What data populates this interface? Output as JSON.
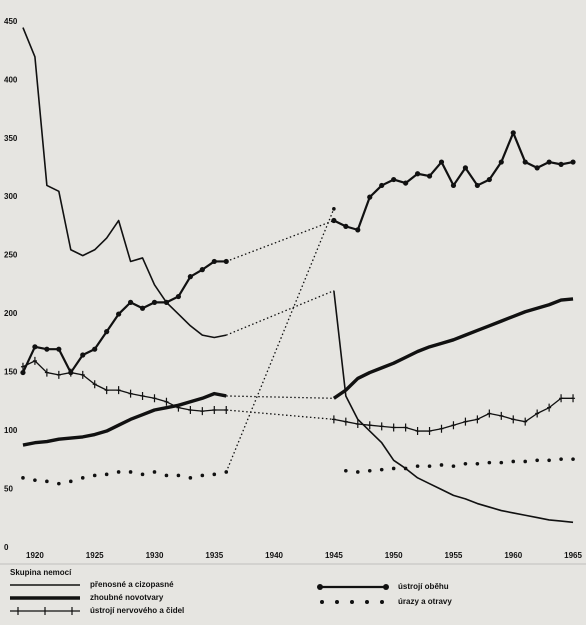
{
  "chart_data": {
    "type": "line",
    "x": [
      1919,
      1920,
      1921,
      1922,
      1923,
      1924,
      1925,
      1926,
      1927,
      1928,
      1929,
      1930,
      1931,
      1932,
      1933,
      1934,
      1935,
      1936,
      1937,
      1938,
      1939,
      1940,
      1941,
      1942,
      1943,
      1944,
      1945,
      1946,
      1947,
      1948,
      1949,
      1950,
      1951,
      1952,
      1953,
      1954,
      1955,
      1956,
      1957,
      1958,
      1959,
      1960,
      1961,
      1962,
      1963,
      1964,
      1965
    ],
    "legend_title": "Skupina nemocí",
    "series": [
      {
        "name": "přenosné a cizopasné",
        "style": "thin",
        "color": "#111111",
        "values": [
          445,
          420,
          310,
          305,
          255,
          250,
          255,
          265,
          280,
          245,
          248,
          225,
          210,
          200,
          190,
          182,
          180,
          182,
          null,
          null,
          null,
          null,
          null,
          null,
          null,
          null,
          220,
          130,
          110,
          100,
          90,
          75,
          68,
          60,
          55,
          50,
          45,
          42,
          38,
          35,
          32,
          30,
          28,
          26,
          24,
          23,
          22
        ]
      },
      {
        "name": "zhoubné novotvary",
        "style": "thick",
        "color": "#111111",
        "values": [
          88,
          90,
          91,
          93,
          94,
          95,
          97,
          100,
          105,
          110,
          114,
          118,
          120,
          122,
          125,
          128,
          132,
          130,
          null,
          null,
          null,
          null,
          null,
          null,
          null,
          null,
          128,
          135,
          145,
          150,
          154,
          158,
          163,
          168,
          172,
          175,
          178,
          182,
          186,
          190,
          194,
          198,
          202,
          205,
          208,
          212,
          213
        ]
      },
      {
        "name": "ústrojí nervového a čidel",
        "style": "cross",
        "color": "#111111",
        "values": [
          155,
          160,
          150,
          148,
          150,
          148,
          140,
          135,
          135,
          132,
          130,
          128,
          125,
          120,
          118,
          117,
          118,
          118,
          null,
          null,
          null,
          null,
          null,
          null,
          null,
          null,
          110,
          108,
          106,
          105,
          104,
          103,
          103,
          100,
          100,
          102,
          105,
          108,
          110,
          115,
          113,
          110,
          108,
          115,
          120,
          128,
          128
        ]
      },
      {
        "name": "ústrojí oběhu",
        "style": "dot-line",
        "color": "#111111",
        "values": [
          150,
          172,
          170,
          170,
          150,
          165,
          170,
          185,
          200,
          210,
          205,
          210,
          210,
          215,
          232,
          238,
          245,
          245,
          null,
          null,
          null,
          null,
          null,
          null,
          null,
          null,
          280,
          275,
          272,
          300,
          310,
          315,
          312,
          320,
          318,
          330,
          310,
          325,
          310,
          315,
          330,
          355,
          330,
          325,
          330,
          328,
          330
        ]
      },
      {
        "name": "úrazy a otravy",
        "style": "dotted",
        "color": "#111111",
        "values": [
          60,
          58,
          57,
          55,
          57,
          60,
          62,
          63,
          65,
          65,
          63,
          65,
          62,
          62,
          60,
          62,
          63,
          65,
          null,
          null,
          null,
          null,
          null,
          null,
          null,
          null,
          290,
          66,
          65,
          66,
          67,
          68,
          68,
          70,
          70,
          71,
          70,
          72,
          72,
          73,
          73,
          74,
          74,
          75,
          75,
          76,
          76
        ]
      }
    ],
    "xlim": [
      1918,
      1966
    ],
    "xticks": [
      1920,
      1925,
      1930,
      1935,
      1940,
      1945,
      1950,
      1955,
      1960,
      1965
    ],
    "ylim": [
      0,
      460
    ],
    "yticks": [
      0,
      50,
      100,
      150,
      200,
      250,
      300,
      350,
      400,
      450
    ],
    "grid": false
  }
}
